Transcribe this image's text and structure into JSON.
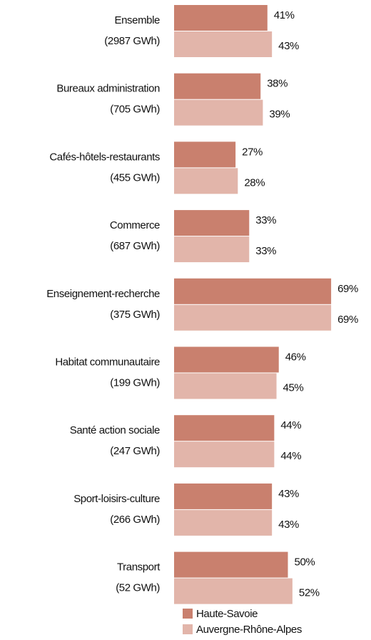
{
  "chart_data": {
    "type": "bar",
    "orientation": "horizontal",
    "categories": [
      "Ensemble",
      "Bureaux administration",
      "Cafés-hôtels-restaurants",
      "Commerce",
      "Enseignement-recherche",
      "Habitat communautaire",
      "Santé action sociale",
      "Sport-loisirs-culture",
      "Transport"
    ],
    "category_sublabels": [
      "(2987 GWh)",
      "(705 GWh)",
      "(455 GWh)",
      "(687 GWh)",
      "(375 GWh)",
      "(199 GWh)",
      "(247 GWh)",
      "(266 GWh)",
      "(52 GWh)"
    ],
    "series": [
      {
        "name": "Haute-Savoie",
        "color": "#c9806e",
        "values": [
          41,
          38,
          27,
          33,
          69,
          46,
          44,
          43,
          50
        ],
        "value_labels": [
          "41%",
          "38%",
          "27%",
          "33%",
          "69%",
          "46%",
          "44%",
          "43%",
          "50%"
        ]
      },
      {
        "name": "Auvergne-Rhône-Alpes",
        "color": "#e2b5aa",
        "values": [
          43,
          39,
          28,
          33,
          69,
          45,
          44,
          43,
          52
        ],
        "value_labels": [
          "43%",
          "39%",
          "28%",
          "33%",
          "69%",
          "45%",
          "44%",
          "43%",
          "52%"
        ]
      }
    ]
  }
}
